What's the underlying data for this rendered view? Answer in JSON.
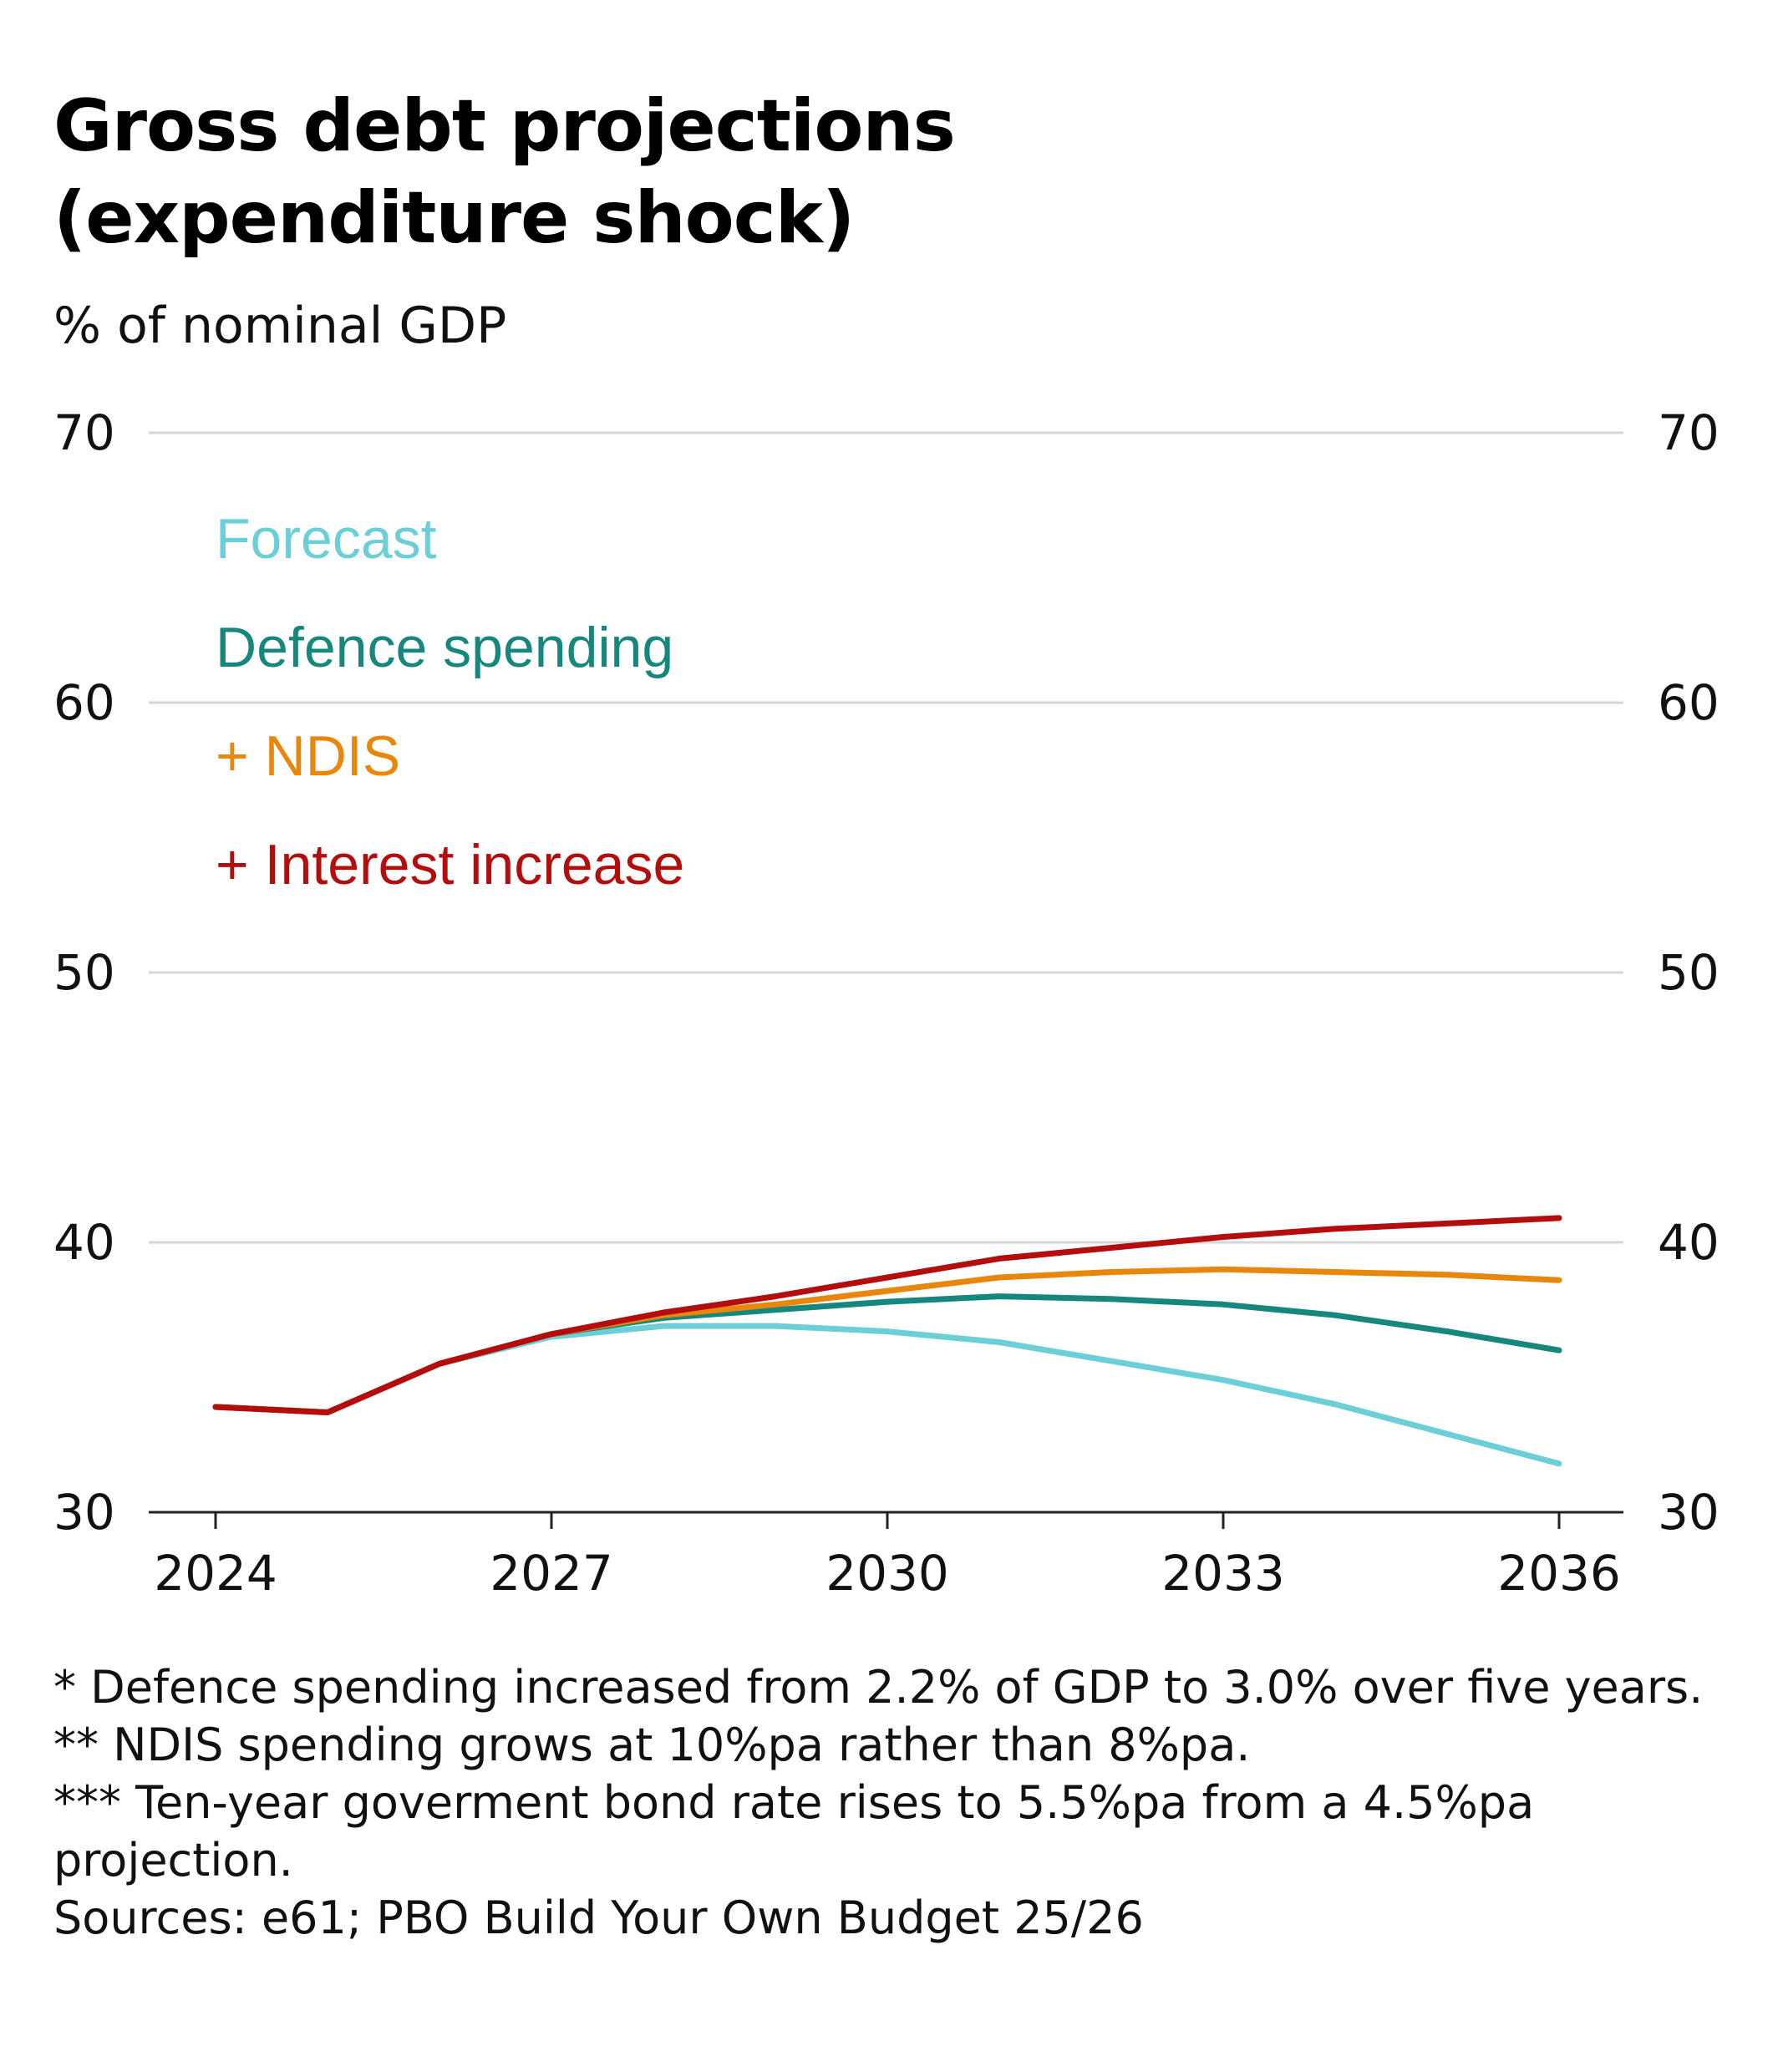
{
  "title_line1": "Gross debt projections",
  "title_line2": "(expenditure shock)",
  "subtitle": "% of nominal GDP",
  "footnotes": [
    "* Defence spending increased from 2.2% of GDP to 3.0% over five years.",
    "** NDIS spending grows at 10%pa rather than 8%pa.",
    "*** Ten-year goverment bond rate rises to 5.5%pa from a 4.5%pa projection."
  ],
  "source": "Sources: e61; PBO Build Your Own Budget 25/26",
  "chart_data": {
    "type": "line",
    "title": "Gross debt projections (expenditure shock)",
    "ylabel": "% of nominal GDP",
    "xlabel": "",
    "ylim": [
      30,
      70
    ],
    "xlim": [
      2024,
      2036
    ],
    "y_ticks": [
      30,
      40,
      50,
      60,
      70
    ],
    "x_ticks": [
      2024,
      2027,
      2030,
      2033,
      2036
    ],
    "grid": "horizontal",
    "legend_placement": "upper-left (inline text labels)",
    "x": [
      2024,
      2025,
      2026,
      2027,
      2028,
      2029,
      2030,
      2031,
      2032,
      2033,
      2034,
      2035,
      2036
    ],
    "series": [
      {
        "name": "Forecast",
        "color": "#6cced6",
        "values": [
          33.9,
          33.7,
          35.5,
          36.5,
          36.9,
          36.9,
          36.7,
          36.3,
          35.6,
          34.9,
          34.0,
          32.9,
          31.8
        ]
      },
      {
        "name": "Defence spending",
        "color": "#15877c",
        "values": [
          33.9,
          33.7,
          35.5,
          36.6,
          37.2,
          37.5,
          37.8,
          38.0,
          37.9,
          37.7,
          37.3,
          36.7,
          36.0
        ]
      },
      {
        "name": "+ NDIS",
        "color": "#e9860c",
        "values": [
          33.9,
          33.7,
          35.5,
          36.6,
          37.3,
          37.7,
          38.2,
          38.7,
          38.9,
          39.0,
          38.9,
          38.8,
          38.6
        ]
      },
      {
        "name": "+ Interest increase",
        "color": "#b30d0d",
        "values": [
          33.9,
          33.7,
          35.5,
          36.6,
          37.4,
          38.0,
          38.7,
          39.4,
          39.8,
          40.2,
          40.5,
          40.7,
          40.9
        ]
      }
    ]
  }
}
